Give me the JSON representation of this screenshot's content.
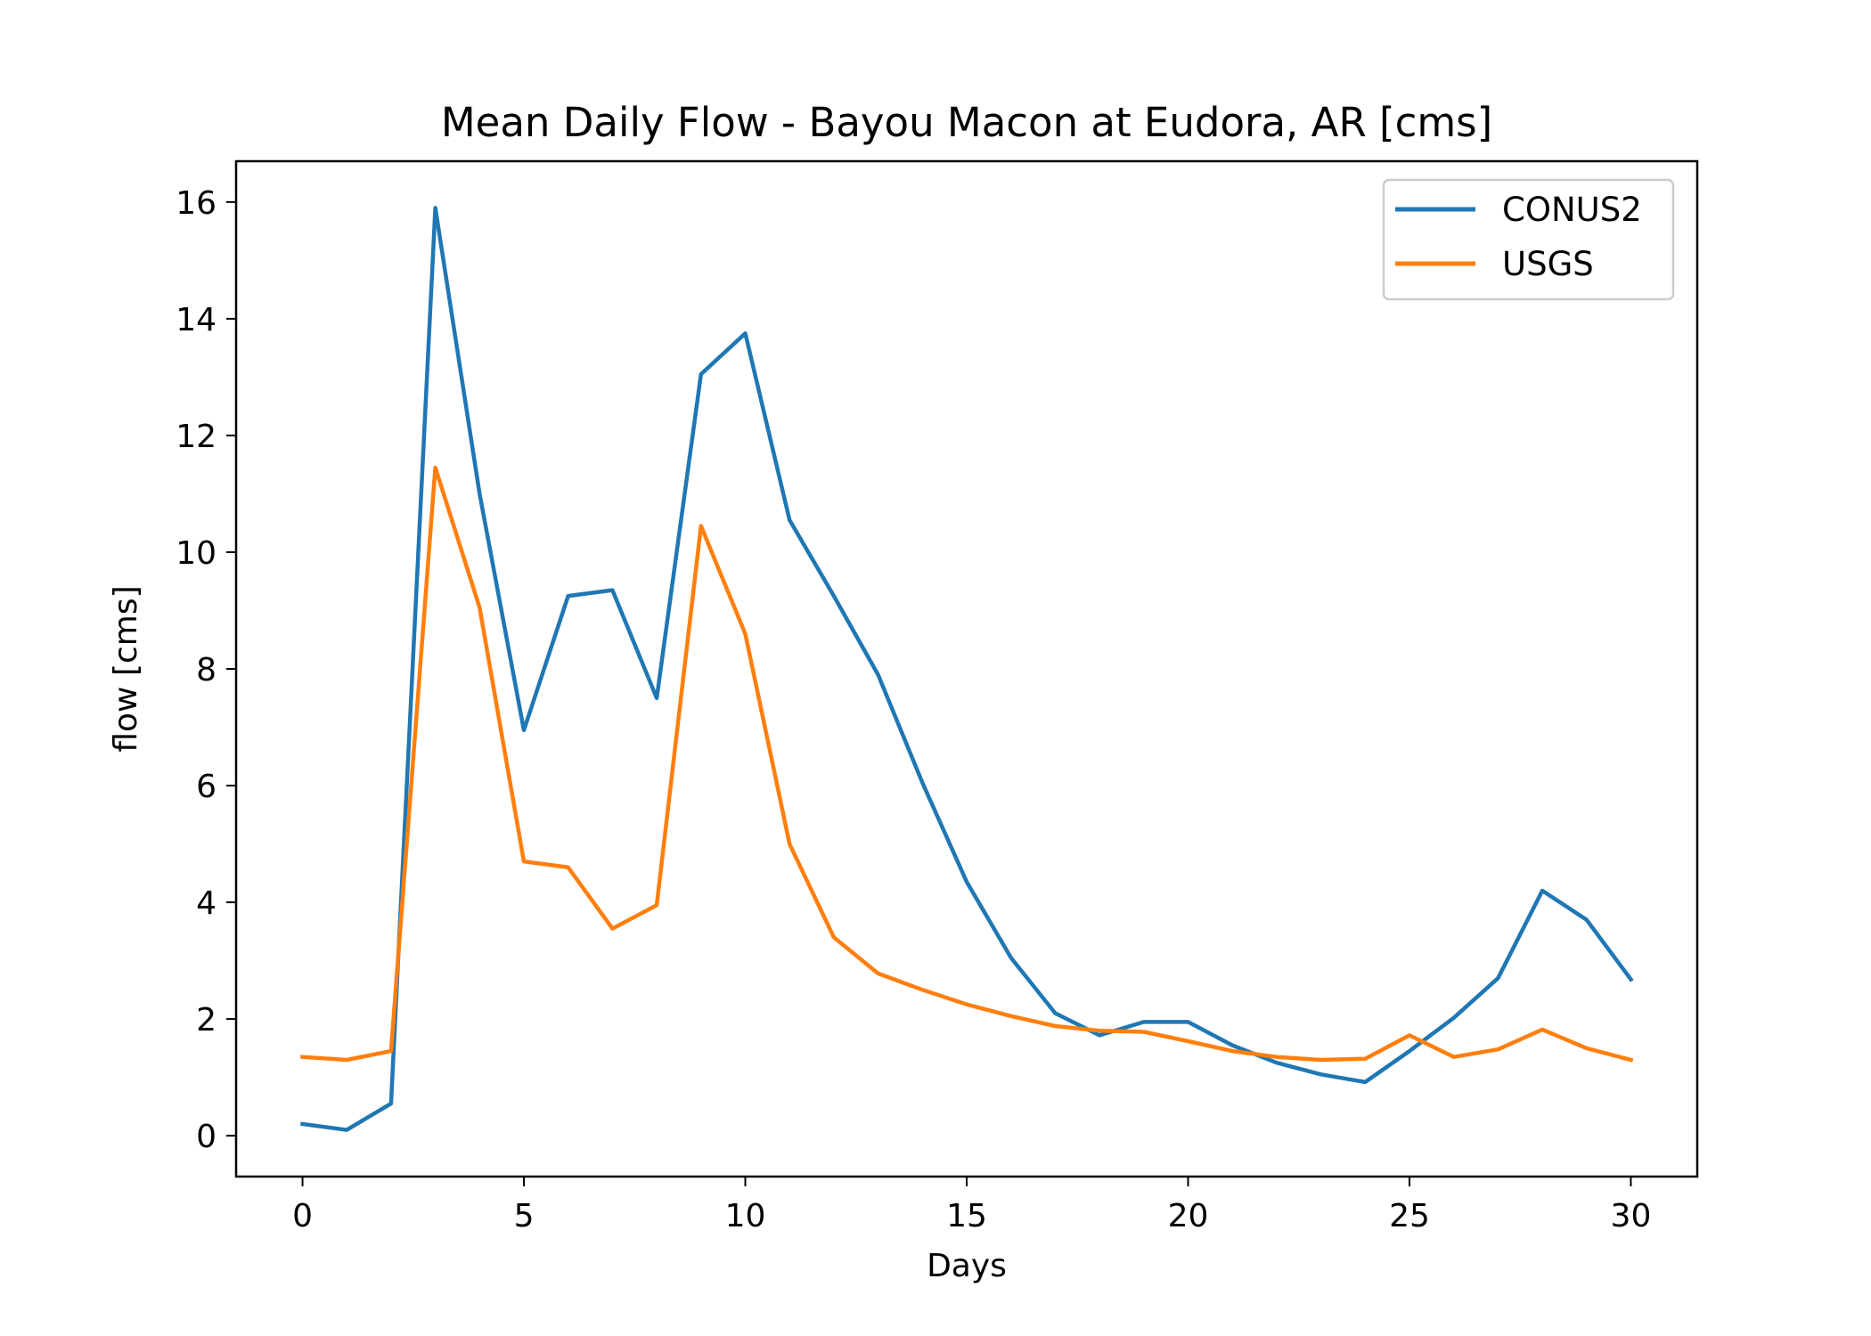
{
  "chart_data": {
    "type": "line",
    "title": "Mean Daily Flow - Bayou Macon at Eudora, AR [cms]",
    "xlabel": "Days",
    "ylabel": "flow [cms]",
    "xlim": [
      -1.5,
      31.5
    ],
    "ylim": [
      -0.7,
      16.7
    ],
    "xticks": [
      0,
      5,
      10,
      15,
      20,
      25,
      30
    ],
    "yticks": [
      0,
      2,
      4,
      6,
      8,
      10,
      12,
      14,
      16
    ],
    "grid": false,
    "legend_position": "top-right",
    "x": [
      0,
      1,
      2,
      3,
      4,
      5,
      6,
      7,
      8,
      9,
      10,
      11,
      12,
      13,
      14,
      15,
      16,
      17,
      18,
      19,
      20,
      21,
      22,
      23,
      24,
      25,
      26,
      27,
      28,
      29,
      30
    ],
    "series": [
      {
        "name": "CONUS2",
        "color": "#1f77b4",
        "values": [
          0.2,
          0.1,
          0.55,
          15.9,
          11.0,
          6.95,
          9.25,
          9.35,
          7.5,
          13.05,
          13.75,
          10.55,
          9.25,
          7.9,
          6.05,
          4.35,
          3.05,
          2.1,
          1.72,
          1.95,
          1.95,
          1.55,
          1.25,
          1.05,
          0.92,
          1.45,
          2.02,
          2.7,
          4.2,
          3.7,
          2.68
        ]
      },
      {
        "name": "USGS",
        "color": "#ff7f0e",
        "values": [
          1.35,
          1.3,
          1.45,
          11.45,
          9.05,
          4.7,
          4.6,
          3.55,
          3.95,
          10.45,
          8.6,
          5.0,
          3.4,
          2.78,
          2.5,
          2.25,
          2.05,
          1.88,
          1.8,
          1.78,
          1.62,
          1.45,
          1.35,
          1.3,
          1.32,
          1.72,
          1.35,
          1.48,
          1.82,
          1.5,
          1.3
        ]
      }
    ]
  }
}
